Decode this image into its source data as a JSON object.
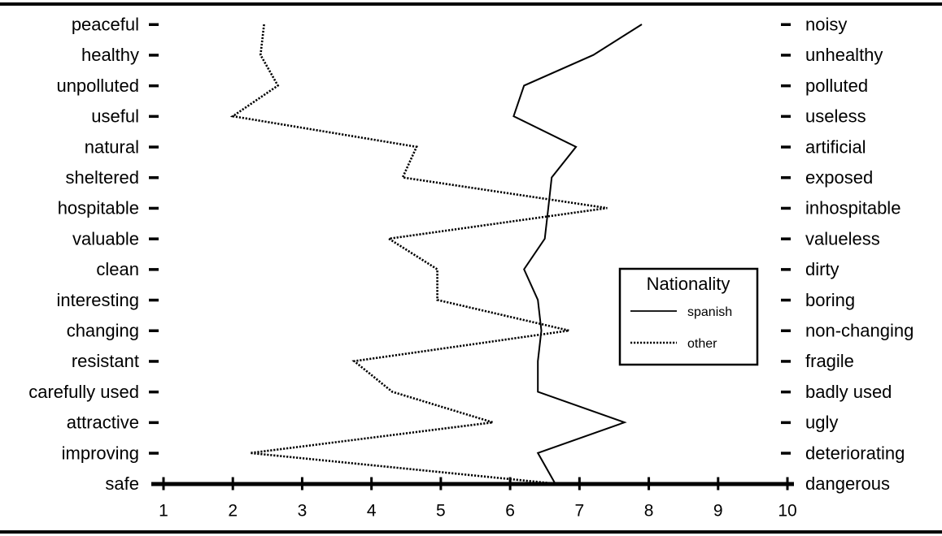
{
  "chart_data": {
    "type": "line",
    "orientation": "horizontal-values",
    "left_labels": [
      "peaceful",
      "healthy",
      "unpolluted",
      "useful",
      "natural",
      "sheltered",
      "hospitable",
      "valuable",
      "clean",
      "interesting",
      "changing",
      "resistant",
      "carefully used",
      "attractive",
      "improving",
      "safe"
    ],
    "right_labels": [
      "noisy",
      "unhealthy",
      "polluted",
      "useless",
      "artificial",
      "exposed",
      "inhospitable",
      "valueless",
      "dirty",
      "boring",
      "non-changing",
      "fragile",
      "badly used",
      "ugly",
      "deteriorating",
      "dangerous"
    ],
    "x_ticks": [
      "1",
      "2",
      "3",
      "4",
      "5",
      "6",
      "7",
      "8",
      "9",
      "10"
    ],
    "xlim": [
      1,
      10
    ],
    "series": [
      {
        "name": "spanish",
        "style": "solid",
        "values": [
          7.9,
          7.2,
          6.2,
          6.05,
          6.95,
          6.6,
          6.55,
          6.5,
          6.2,
          6.4,
          6.45,
          6.4,
          6.4,
          7.65,
          6.4,
          6.65
        ]
      },
      {
        "name": "other",
        "style": "dotted",
        "values": [
          2.45,
          2.4,
          2.65,
          2.0,
          4.65,
          4.45,
          7.4,
          4.25,
          4.95,
          4.95,
          6.85,
          3.75,
          4.3,
          5.75,
          2.25,
          6.65
        ]
      }
    ],
    "legend": {
      "title": "Nationality",
      "position": "right-center"
    },
    "grid": false
  }
}
